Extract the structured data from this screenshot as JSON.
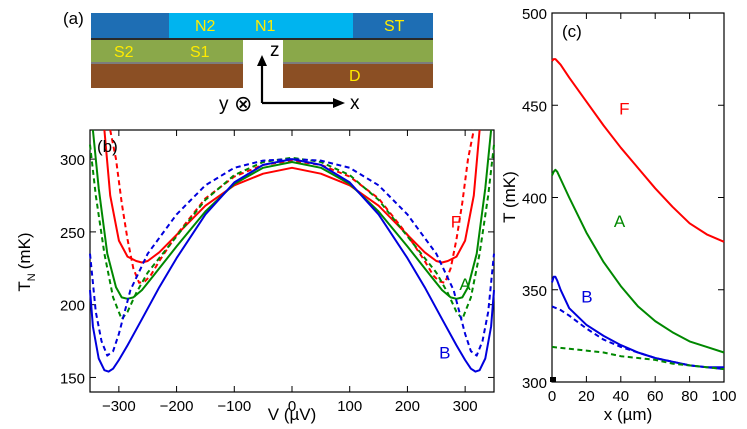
{
  "panel_a": {
    "label": "(a)",
    "layers": {
      "N2": "N2",
      "N1": "N1",
      "ST": "ST",
      "S2": "S2",
      "S1": "S1",
      "D": "D"
    },
    "axes": {
      "z": "z",
      "x": "x",
      "y": "y",
      "y_symbol": "⊗"
    },
    "colors": {
      "dark_blue": "#1e6eb4",
      "light_blue": "#00b4ef",
      "green": "#8aa84a",
      "brown": "#8b4f24",
      "gray": "#7c7c7c",
      "text": "#ffeb00"
    }
  },
  "chart_data": [
    {
      "panel": "(b)",
      "type": "line",
      "xlabel": "V (µV)",
      "ylabel_main": "T",
      "ylabel_sub": "N",
      "ylabel_unit": "(mK)",
      "xlim": [
        -350,
        350
      ],
      "ylim": [
        140,
        320
      ],
      "xticks": [
        -300,
        -200,
        -100,
        0,
        100,
        200,
        300
      ],
      "yticks": [
        150,
        200,
        250,
        300
      ],
      "series": [
        {
          "name": "F",
          "color": "#ff0000",
          "style": "solid",
          "x": [
            -325,
            -315,
            -300,
            -285,
            -270,
            -260,
            -250,
            -230,
            -200,
            -150,
            -100,
            -50,
            0,
            50,
            100,
            150,
            200,
            230,
            250,
            260,
            270,
            285,
            300,
            315,
            325
          ],
          "y": [
            320,
            275,
            244,
            233,
            230,
            229,
            230,
            236,
            248,
            268,
            282,
            290,
            294,
            290,
            282,
            268,
            248,
            236,
            230,
            229,
            230,
            233,
            244,
            275,
            320
          ]
        },
        {
          "name": "F",
          "color": "#ff0000",
          "style": "dashed",
          "x": [
            -315,
            -305,
            -295,
            -285,
            -275,
            -265,
            -255,
            -245,
            -230,
            -200,
            -150,
            -100,
            -50,
            0,
            50,
            100,
            150,
            200,
            230,
            245,
            255,
            265,
            275,
            285,
            295,
            305,
            315
          ],
          "y": [
            320,
            300,
            270,
            245,
            225,
            215,
            216,
            220,
            230,
            248,
            273,
            288,
            296,
            299,
            296,
            288,
            273,
            248,
            230,
            220,
            216,
            215,
            225,
            245,
            270,
            300,
            320
          ]
        },
        {
          "name": "A",
          "color": "#008800",
          "style": "solid",
          "x": [
            -345,
            -335,
            -320,
            -305,
            -295,
            -285,
            -275,
            -260,
            -240,
            -200,
            -150,
            -100,
            -50,
            0,
            50,
            100,
            150,
            200,
            240,
            260,
            275,
            285,
            295,
            305,
            320,
            335,
            345
          ],
          "y": [
            320,
            280,
            235,
            212,
            205,
            204,
            205,
            210,
            220,
            240,
            264,
            283,
            294,
            298,
            294,
            283,
            264,
            240,
            220,
            210,
            205,
            204,
            205,
            212,
            235,
            280,
            320
          ]
        },
        {
          "name": "A",
          "color": "#008800",
          "style": "dashed",
          "x": [
            -350,
            -340,
            -325,
            -310,
            -295,
            -285,
            -270,
            -250,
            -200,
            -150,
            -100,
            -50,
            0,
            50,
            100,
            150,
            200,
            250,
            270,
            285,
            295,
            310,
            325,
            340,
            350
          ],
          "y": [
            310,
            275,
            235,
            205,
            190,
            195,
            208,
            222,
            247,
            272,
            289,
            298,
            301,
            298,
            289,
            272,
            247,
            222,
            208,
            195,
            190,
            205,
            235,
            275,
            310
          ]
        },
        {
          "name": "B",
          "color": "#0000dd",
          "style": "solid",
          "x": [
            -350,
            -345,
            -335,
            -325,
            -318,
            -310,
            -300,
            -285,
            -260,
            -230,
            -200,
            -150,
            -100,
            -50,
            0,
            50,
            100,
            150,
            200,
            230,
            260,
            285,
            300,
            310,
            318,
            325,
            335,
            345,
            350
          ],
          "y": [
            210,
            185,
            163,
            155,
            154,
            156,
            162,
            172,
            190,
            212,
            232,
            262,
            284,
            296,
            300,
            296,
            284,
            262,
            232,
            212,
            190,
            172,
            162,
            156,
            154,
            155,
            163,
            185,
            210
          ]
        },
        {
          "name": "B",
          "color": "#0000dd",
          "style": "dashed",
          "x": [
            -350,
            -340,
            -330,
            -320,
            -310,
            -300,
            -280,
            -250,
            -200,
            -150,
            -100,
            -50,
            0,
            50,
            100,
            150,
            200,
            250,
            280,
            300,
            310,
            320,
            330,
            340,
            350
          ],
          "y": [
            235,
            195,
            175,
            165,
            168,
            180,
            210,
            235,
            262,
            282,
            294,
            299,
            300,
            299,
            294,
            282,
            262,
            235,
            210,
            180,
            168,
            165,
            175,
            195,
            235
          ]
        }
      ],
      "labels": [
        {
          "text": "F",
          "x": 275,
          "y": 253,
          "color": "#ff0000"
        },
        {
          "text": "A",
          "x": 290,
          "y": 210,
          "color": "#008800"
        },
        {
          "text": "B",
          "x": 255,
          "y": 163,
          "color": "#0000dd"
        }
      ]
    },
    {
      "panel": "(c)",
      "type": "line",
      "xlabel": "x (µm)",
      "ylabel": "T (mK)",
      "xlim": [
        0,
        100
      ],
      "ylim": [
        300,
        500
      ],
      "xticks": [
        0,
        20,
        40,
        60,
        80,
        100
      ],
      "yticks": [
        300,
        350,
        400,
        450,
        500
      ],
      "series": [
        {
          "name": "F",
          "color": "#ff0000",
          "style": "solid",
          "x": [
            0,
            1,
            2,
            3,
            5,
            10,
            20,
            30,
            40,
            50,
            60,
            70,
            80,
            90,
            100
          ],
          "y": [
            474,
            475,
            475,
            474,
            472,
            465,
            452,
            439,
            427,
            416,
            405,
            395,
            386,
            380,
            376
          ]
        },
        {
          "name": "A",
          "color": "#008800",
          "style": "solid",
          "x": [
            0,
            1,
            2,
            3,
            5,
            10,
            20,
            30,
            40,
            50,
            60,
            70,
            80,
            90,
            100
          ],
          "y": [
            412,
            414,
            415,
            414,
            410,
            400,
            381,
            365,
            352,
            341,
            333,
            327,
            322,
            319,
            316
          ]
        },
        {
          "name": "B",
          "color": "#0000dd",
          "style": "solid",
          "x": [
            0,
            1,
            2,
            3,
            5,
            10,
            20,
            30,
            40,
            50,
            60,
            70,
            80,
            90,
            100
          ],
          "y": [
            354,
            357,
            357,
            355,
            350,
            340,
            331,
            325,
            320,
            316,
            313,
            311,
            309,
            308,
            308
          ]
        },
        {
          "name": "B",
          "color": "#0000dd",
          "style": "dashed",
          "x": [
            0,
            5,
            10,
            20,
            30,
            40,
            50,
            60,
            70,
            80,
            90,
            100
          ],
          "y": [
            341,
            339,
            336,
            329,
            323,
            319,
            316,
            313,
            311,
            309,
            308,
            307
          ]
        },
        {
          "name": "A",
          "color": "#008800",
          "style": "dashed",
          "x": [
            0,
            10,
            20,
            30,
            40,
            50,
            60,
            70,
            80,
            90,
            100
          ],
          "y": [
            319,
            318,
            317,
            316,
            314,
            313,
            312,
            310,
            309,
            308,
            307
          ]
        }
      ],
      "labels": [
        {
          "text": "F",
          "x": 39,
          "y": 445,
          "color": "#ff0000"
        },
        {
          "text": "A",
          "x": 36,
          "y": 384,
          "color": "#008800"
        },
        {
          "text": "B",
          "x": 17,
          "y": 343,
          "color": "#0000dd"
        }
      ]
    }
  ]
}
